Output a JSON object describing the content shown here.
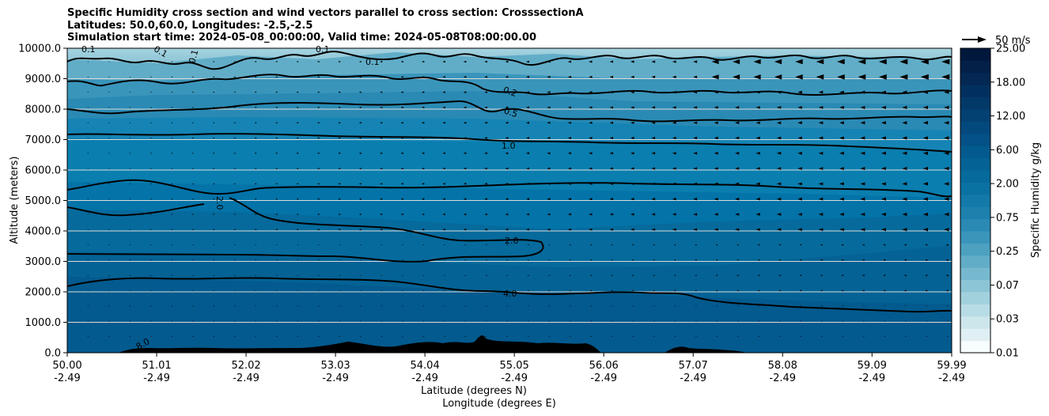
{
  "header": {
    "title_line1": "Specific Humidity cross section and wind vectors parallel to cross section: CrosssectionA",
    "title_line2": "Latitudes: 50.0,60.0, Longitudes: -2.5,-2.5",
    "title_line3": "Simulation start time: 2024-05-08_00:00:00, Valid time: 2024-05-08T08:00:00.00"
  },
  "chart_data": {
    "type": "contour",
    "title": "Specific Humidity cross section and wind vectors parallel to cross section: CrosssectionA",
    "xlabel": "Latitude (degrees N)",
    "xlabel2": "Longitude (degrees E)",
    "ylabel": "Altitude (meters)",
    "ylim": [
      0,
      10000
    ],
    "yticks": [
      "0.0",
      "1000.0",
      "2000.0",
      "3000.0",
      "4000.0",
      "5000.0",
      "6000.0",
      "7000.0",
      "8000.0",
      "9000.0",
      "10000.0"
    ],
    "xticks_lat": [
      "50.00",
      "51.01",
      "52.02",
      "53.03",
      "54.04",
      "55.05",
      "56.06",
      "57.07",
      "58.08",
      "59.09",
      "59.99"
    ],
    "xticks_lon": [
      "-2.49",
      "-2.49",
      "-2.49",
      "-2.49",
      "-2.49",
      "-2.49",
      "-2.49",
      "-2.49",
      "-2.49",
      "-2.49",
      "-2.49"
    ],
    "grid": "horizontal",
    "colorbar": {
      "label": "Specific Humidity g/kg",
      "tick_labels": [
        "0.01",
        "0.03",
        "0.07",
        "0.25",
        "0.75",
        "2.00",
        "6.00",
        "12.00",
        "18.00",
        "25.00"
      ],
      "colors": [
        "#f7fcfd",
        "#e0eff3",
        "#cde6ec",
        "#b8dce6",
        "#a2d1de",
        "#8cc5d6",
        "#76b9cf",
        "#61adc8",
        "#4ca1c1",
        "#3a95bb",
        "#2a8ab4",
        "#1d80ad",
        "#1379a8",
        "#0a72a2",
        "#066a9c",
        "#046295",
        "#035a8e",
        "#035186",
        "#03497d",
        "#034173",
        "#023968",
        "#02305e",
        "#022853",
        "#022048",
        "#01183d"
      ]
    },
    "contour_labels": [
      "0.1",
      "0.1",
      "0.1",
      "0.1",
      "0.1",
      "0.2",
      "0.5",
      "1.0",
      "2.0",
      "2.0",
      "4.0",
      "8.0"
    ],
    "wind_reference": "50 m/s",
    "background_colors": {
      "band_10000_9000": "#8cc5d6",
      "band_9000_8000": "#4ca1c1",
      "band_8000_7000": "#2a8ab4",
      "band_7000_5000": "#0a7eaf",
      "band_5000_3000": "#0373a8",
      "band_3000_0": "#035a8e"
    }
  }
}
